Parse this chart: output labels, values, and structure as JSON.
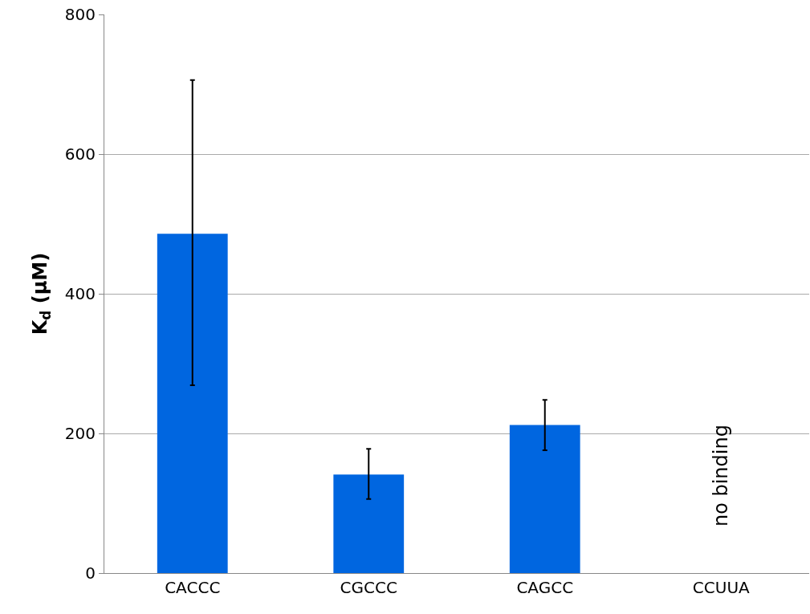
{
  "chart_data": {
    "type": "bar",
    "ylabel": "K$_{d}$ (µM)",
    "categories": [
      "CACCC",
      "CGCCC",
      "CAGCC",
      "CCUUA"
    ],
    "values": [
      486,
      141,
      212,
      null
    ],
    "errors": [
      [
        269,
        706
      ],
      [
        106,
        178
      ],
      [
        176,
        248
      ],
      null
    ],
    "color": "#0066e0",
    "ylim": [
      0,
      800
    ],
    "yticks": [
      0,
      200,
      400,
      600,
      800
    ],
    "grid": "y",
    "annotations": [
      "no binding"
    ]
  }
}
